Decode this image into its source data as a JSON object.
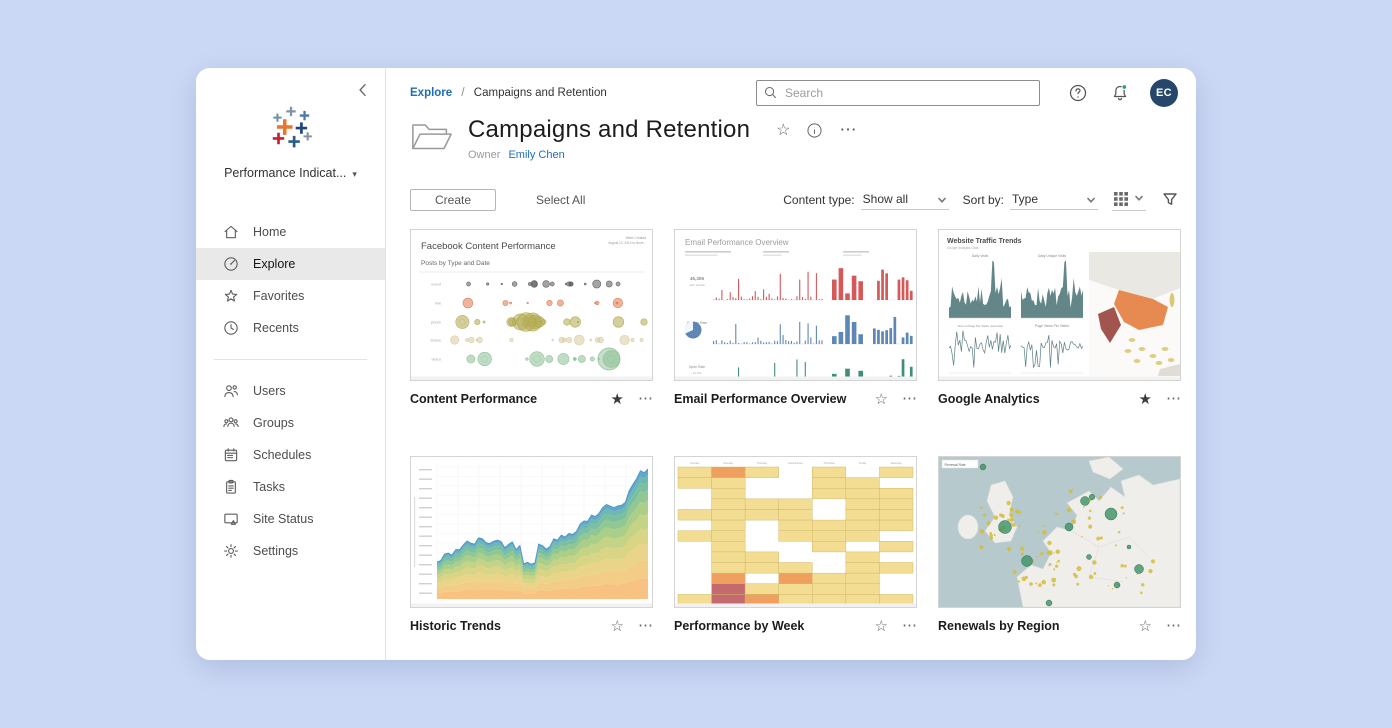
{
  "sidebar": {
    "site_label": "Performance Indicat...",
    "items": [
      {
        "label": "Home",
        "icon": "home",
        "selected": false
      },
      {
        "label": "Explore",
        "icon": "explore",
        "selected": true
      },
      {
        "label": "Favorites",
        "icon": "star",
        "selected": false
      },
      {
        "label": "Recents",
        "icon": "clock",
        "selected": false
      },
      {
        "label": "Users",
        "icon": "users",
        "selected": false
      },
      {
        "label": "Groups",
        "icon": "groups",
        "selected": false
      },
      {
        "label": "Schedules",
        "icon": "schedules",
        "selected": false
      },
      {
        "label": "Tasks",
        "icon": "tasks",
        "selected": false
      },
      {
        "label": "Site Status",
        "icon": "sitestatus",
        "selected": false
      },
      {
        "label": "Settings",
        "icon": "settings",
        "selected": false
      }
    ]
  },
  "header": {
    "breadcrumb_root": "Explore",
    "breadcrumb_sep": "/",
    "breadcrumb_current": "Campaigns and Retention",
    "search_placeholder": "Search",
    "avatar_initials": "EC"
  },
  "page": {
    "title": "Campaigns and Retention",
    "owner_label": "Owner",
    "owner_name": "Emily Chen"
  },
  "toolbar": {
    "create_label": "Create",
    "select_all_label": "Select All",
    "content_type_label": "Content type:",
    "content_type_value": "Show all",
    "sort_by_label": "Sort by:",
    "sort_by_value": "Type"
  },
  "tiles": [
    {
      "title": "Content Performance",
      "starred": true,
      "thumb": {
        "heading": "Facebook Content Performance",
        "subheading": "Posts by Type and Date",
        "note_line1": "Week Created",
        "note_line2": "August 13, 2014 to Nove...",
        "rows": [
          {
            "label": "event",
            "color": "#5a5a5a"
          },
          {
            "label": "link",
            "color": "#e0764f"
          },
          {
            "label": "photo",
            "color": "#b1a94f"
          },
          {
            "label": "status",
            "color": "#d8cba1"
          },
          {
            "label": "video",
            "color": "#8cc094"
          }
        ]
      }
    },
    {
      "title": "Email Performance Overview",
      "starred": false,
      "thumb": {
        "heading": "Email Performance Overview",
        "row_colors": [
          "#d45959",
          "#5f87b5",
          "#3f8e7b"
        ],
        "stats": [
          [
            "45,306",
            "sent emails"
          ],
          [
            "Delivery Rate",
            "98.1%"
          ],
          [
            "Open Rate",
            "11.2%"
          ]
        ]
      }
    },
    {
      "title": "Google Analytics",
      "starred": true,
      "thumb": {
        "heading": "Website Traffic Trends",
        "subheading": "Google Analytics Data",
        "chart_titles": [
          "Daily Visits",
          "Daily Unique Visits",
          "Time on Page Per Visitor (seconds)",
          "Page Views Per Visitor"
        ],
        "chart_color": "#5b7f83",
        "map_colors": {
          "china": "#e78a51",
          "india": "#a2544e",
          "patch": "#ddc873",
          "land": "#eae8e3"
        }
      }
    },
    {
      "title": "Historic Trends",
      "starred": false,
      "thumb": {
        "band_colors": [
          "#f7bd77",
          "#f2c97c",
          "#e8d07f",
          "#d6d17b",
          "#c0cf7c",
          "#a4ca7f",
          "#87c289",
          "#6fbb97",
          "#60b2ad",
          "#57a1c4"
        ],
        "top_line_color": "#4e97c9"
      }
    },
    {
      "title": "Performance by Week",
      "starred": false,
      "thumb": {
        "day_headers": [
          "Sunday",
          "Monday",
          "Tuesday",
          "Wednesday",
          "Thursday",
          "Friday",
          "Saturday"
        ],
        "cell_colors": {
          "1": "#f3dd92",
          "2": "#efa05f",
          "3": "#c46a6e"
        }
      }
    },
    {
      "title": "Renewals by Region",
      "starred": false,
      "thumb": {
        "heading": "Renewal Rate",
        "colors": {
          "sea": "#b6cace",
          "land": "#efeeeb",
          "dot": "#d3bd3a",
          "bubble": "#3f9367"
        }
      }
    }
  ],
  "colors": {
    "page_background": "#cbd8f5",
    "accent_blue": "#1f6db6",
    "avatar_background": "#26476b",
    "notification_green": "#2aa567",
    "selected_item_background": "#e9e9e9"
  }
}
